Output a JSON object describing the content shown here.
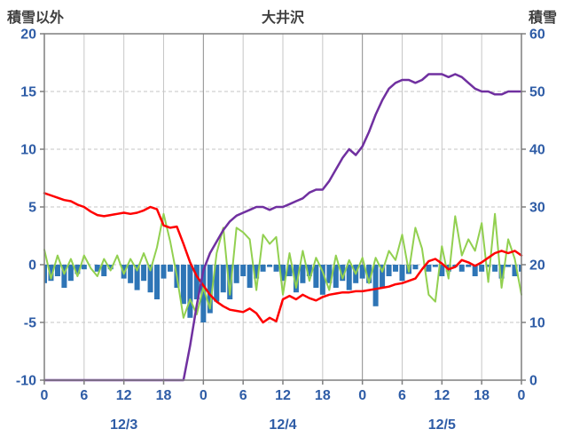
{
  "header": {
    "left_axis_title": "積雪以外",
    "chart_title": "大井沢",
    "right_axis_title": "積雪"
  },
  "colors": {
    "tick_label": "#2E5CA6",
    "title_text": "#3F3F3F",
    "plot_border": "#7F7F7F",
    "grid_minor": "#C6C6C6",
    "grid_day": "#8A8A8A"
  },
  "chart_data": {
    "type": "line",
    "title": "大井沢",
    "legend": "none",
    "grid": {
      "horizontal": "dashed",
      "vertical": "solid"
    },
    "x": {
      "unit": "hour",
      "min": 0,
      "max": 72,
      "tick_interval": 6,
      "tick_labels": [
        "0",
        "6",
        "12",
        "18",
        "0",
        "6",
        "12",
        "18",
        "0",
        "6",
        "12",
        "18",
        "0"
      ],
      "day_labels": [
        "12/3",
        "12/4",
        "12/5"
      ],
      "day_label_hours": [
        12,
        36,
        60
      ]
    },
    "left_axis": {
      "title": "積雪以外",
      "min": -10,
      "max": 20,
      "ticks": [
        20,
        15,
        10,
        5,
        0,
        -5,
        -10
      ]
    },
    "right_axis": {
      "title": "積雪",
      "min": 0,
      "max": 60,
      "ticks": [
        60,
        50,
        40,
        30,
        20,
        10,
        0
      ]
    },
    "series": [
      {
        "name": "blue-bars",
        "type": "bar",
        "axis": "left",
        "color": "#2E75B6",
        "values": [
          -1.6,
          -1.4,
          -1.0,
          -2.0,
          -1.4,
          -0.8,
          -0.4,
          0,
          -0.6,
          -1.0,
          -0.4,
          0,
          -1.2,
          -1.6,
          -2.2,
          -1.4,
          -2.4,
          -3.0,
          -1.2,
          -0.6,
          -2.0,
          -3.4,
          -4.6,
          -3.0,
          -5.0,
          -4.2,
          -3.2,
          -2.4,
          -3.0,
          -1.6,
          -1.0,
          -2.0,
          -1.2,
          -0.6,
          -0.2,
          -0.6,
          -1.4,
          -1.0,
          -2.4,
          -1.6,
          -1.0,
          -2.0,
          -2.6,
          -1.6,
          -2.0,
          -1.4,
          -2.2,
          -1.6,
          -1.2,
          -1.6,
          -3.6,
          -2.0,
          -1.0,
          -0.6,
          -1.4,
          -0.8,
          -0.4,
          0,
          -0.6,
          -0.2,
          -1.0,
          -0.6,
          -0.2,
          -0.6,
          -0.2,
          -1.0,
          -0.6,
          -0.2,
          -0.6,
          -1.2,
          -0.2,
          -1.0,
          -0.6
        ]
      },
      {
        "name": "green-line",
        "type": "line",
        "axis": "left",
        "color": "#92D050",
        "width": 2,
        "values": [
          1.3,
          -1.2,
          0.8,
          -0.8,
          0.5,
          -1.0,
          0.8,
          -0.3,
          -1.0,
          0.5,
          -0.5,
          0.8,
          -0.8,
          0.5,
          -0.5,
          1.0,
          -0.5,
          1.5,
          4.4,
          2.0,
          -1.0,
          -4.6,
          -3.0,
          -4.3,
          -2.0,
          -3.8,
          1.0,
          3.2,
          -2.6,
          3.2,
          2.8,
          2.2,
          -2.2,
          2.6,
          1.8,
          2.4,
          -2.6,
          1.0,
          -2.0,
          1.2,
          -1.4,
          0.6,
          -0.6,
          -2.2,
          0.8,
          -1.2,
          0.4,
          -0.8,
          0.6,
          -1.6,
          0.6,
          -0.6,
          1.2,
          0.4,
          2.6,
          -0.6,
          3.2,
          1.4,
          -2.6,
          -3.2,
          1.6,
          -1.2,
          4.2,
          0.8,
          2.2,
          1.2,
          3.6,
          -1.5,
          4.4,
          -2.0,
          2.2,
          0.5,
          -2.6
        ]
      },
      {
        "name": "red-line",
        "type": "line",
        "axis": "left",
        "color": "#FF0000",
        "width": 2.5,
        "values": [
          6.2,
          6.0,
          5.8,
          5.6,
          5.5,
          5.2,
          5.0,
          4.6,
          4.3,
          4.2,
          4.3,
          4.4,
          4.5,
          4.4,
          4.5,
          4.7,
          5.0,
          4.8,
          3.4,
          3.2,
          3.3,
          1.8,
          0.2,
          -1.0,
          -1.8,
          -2.6,
          -3.2,
          -3.6,
          -3.9,
          -4.0,
          -4.1,
          -3.8,
          -4.2,
          -5.0,
          -4.6,
          -4.9,
          -3.0,
          -2.7,
          -3.0,
          -2.6,
          -2.9,
          -3.1,
          -2.8,
          -2.6,
          -2.5,
          -2.4,
          -2.4,
          -2.3,
          -2.3,
          -2.2,
          -2.1,
          -2.0,
          -1.9,
          -1.7,
          -1.6,
          -1.4,
          -1.2,
          -0.4,
          0.3,
          0.5,
          0.1,
          -0.4,
          -0.2,
          0.4,
          0.2,
          -0.1,
          0.2,
          0.6,
          1.0,
          1.2,
          1.0,
          1.2,
          0.8
        ]
      },
      {
        "name": "purple-line",
        "type": "line",
        "axis": "right",
        "color": "#7030A0",
        "width": 2.5,
        "values": [
          0,
          0,
          0,
          0,
          0,
          0,
          0,
          0,
          0,
          0,
          0,
          0,
          0,
          0,
          0,
          0,
          0,
          0,
          0,
          0,
          0,
          0,
          6,
          13,
          19,
          22,
          24,
          26,
          27.5,
          28.5,
          29,
          29.5,
          30,
          30,
          29.5,
          30,
          30,
          30.5,
          31,
          31.5,
          32.5,
          33,
          33,
          34.5,
          36.5,
          38.5,
          40,
          39,
          40.5,
          43,
          46,
          48.5,
          50.5,
          51.5,
          52,
          52,
          51.5,
          52,
          53,
          53,
          53,
          52.5,
          53,
          52.5,
          51.5,
          50.5,
          50,
          50,
          49.5,
          49.5,
          50,
          50,
          50
        ]
      }
    ]
  }
}
